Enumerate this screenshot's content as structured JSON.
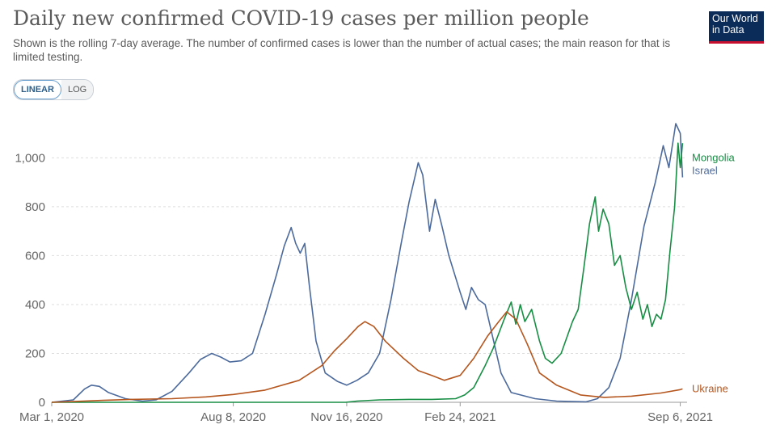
{
  "title": "Daily new confirmed COVID-19 cases per million people",
  "subtitle": "Shown is the rolling 7-day average. The number of confirmed cases is lower than the number of actual cases; the main reason for that is limited testing.",
  "logo": {
    "line1": "Our World",
    "line2": "in Data"
  },
  "scale_toggle": {
    "linear": "LINEAR",
    "log": "LOG",
    "active": "LINEAR"
  },
  "colors": {
    "israel": "#4c6a9c",
    "mongolia": "#178e44",
    "ukraine": "#b5561e",
    "grid": "#dddddd"
  },
  "chart_data": {
    "type": "line",
    "xlabel": "",
    "ylabel": "",
    "x_range": [
      "2020-03-01",
      "2021-09-12"
    ],
    "ylim": [
      0,
      1150
    ],
    "y_ticks": [
      0,
      200,
      400,
      600,
      800,
      1000
    ],
    "y_tick_labels": [
      "0",
      "200",
      "400",
      "600",
      "800",
      "1,000"
    ],
    "x_ticks": [
      "2020-03-01",
      "2020-08-08",
      "2020-11-16",
      "2021-02-24",
      "2021-09-06"
    ],
    "x_tick_labels": [
      "Mar 1, 2020",
      "Aug 8, 2020",
      "Nov 16, 2020",
      "Feb 24, 2021",
      "Sep 6, 2021"
    ],
    "grid": "horizontal dashed",
    "legend": "labels at line ends",
    "series": [
      {
        "name": "Israel",
        "color": "#4c6a9c",
        "points": [
          [
            "2020-03-01",
            0
          ],
          [
            "2020-03-20",
            10
          ],
          [
            "2020-03-30",
            55
          ],
          [
            "2020-04-05",
            70
          ],
          [
            "2020-04-12",
            65
          ],
          [
            "2020-04-20",
            40
          ],
          [
            "2020-05-05",
            15
          ],
          [
            "2020-05-20",
            5
          ],
          [
            "2020-06-01",
            10
          ],
          [
            "2020-06-15",
            45
          ],
          [
            "2020-06-30",
            120
          ],
          [
            "2020-07-10",
            175
          ],
          [
            "2020-07-20",
            200
          ],
          [
            "2020-07-28",
            185
          ],
          [
            "2020-08-05",
            165
          ],
          [
            "2020-08-15",
            170
          ],
          [
            "2020-08-25",
            200
          ],
          [
            "2020-09-05",
            360
          ],
          [
            "2020-09-15",
            520
          ],
          [
            "2020-09-22",
            640
          ],
          [
            "2020-09-28",
            715
          ],
          [
            "2020-10-02",
            650
          ],
          [
            "2020-10-06",
            610
          ],
          [
            "2020-10-10",
            650
          ],
          [
            "2020-10-14",
            480
          ],
          [
            "2020-10-20",
            250
          ],
          [
            "2020-10-28",
            120
          ],
          [
            "2020-11-08",
            85
          ],
          [
            "2020-11-16",
            70
          ],
          [
            "2020-11-25",
            90
          ],
          [
            "2020-12-05",
            120
          ],
          [
            "2020-12-15",
            200
          ],
          [
            "2020-12-25",
            420
          ],
          [
            "2021-01-03",
            650
          ],
          [
            "2021-01-10",
            820
          ],
          [
            "2021-01-18",
            980
          ],
          [
            "2021-01-22",
            930
          ],
          [
            "2021-01-28",
            700
          ],
          [
            "2021-02-02",
            830
          ],
          [
            "2021-02-08",
            720
          ],
          [
            "2021-02-14",
            600
          ],
          [
            "2021-02-24",
            450
          ],
          [
            "2021-03-01",
            380
          ],
          [
            "2021-03-06",
            470
          ],
          [
            "2021-03-12",
            420
          ],
          [
            "2021-03-18",
            400
          ],
          [
            "2021-03-25",
            260
          ],
          [
            "2021-04-01",
            120
          ],
          [
            "2021-04-10",
            40
          ],
          [
            "2021-05-01",
            15
          ],
          [
            "2021-05-20",
            5
          ],
          [
            "2021-06-15",
            2
          ],
          [
            "2021-06-25",
            15
          ],
          [
            "2021-07-05",
            60
          ],
          [
            "2021-07-15",
            180
          ],
          [
            "2021-07-25",
            420
          ],
          [
            "2021-08-05",
            720
          ],
          [
            "2021-08-15",
            900
          ],
          [
            "2021-08-22",
            1050
          ],
          [
            "2021-08-27",
            960
          ],
          [
            "2021-09-02",
            1140
          ],
          [
            "2021-09-06",
            1100
          ],
          [
            "2021-09-08",
            920
          ]
        ]
      },
      {
        "name": "Mongolia",
        "color": "#178e44",
        "points": [
          [
            "2020-03-01",
            0
          ],
          [
            "2020-11-15",
            0
          ],
          [
            "2020-11-25",
            5
          ],
          [
            "2020-12-15",
            10
          ],
          [
            "2021-01-10",
            12
          ],
          [
            "2021-01-30",
            12
          ],
          [
            "2021-02-20",
            15
          ],
          [
            "2021-02-28",
            30
          ],
          [
            "2021-03-08",
            60
          ],
          [
            "2021-03-18",
            150
          ],
          [
            "2021-03-25",
            220
          ],
          [
            "2021-04-03",
            330
          ],
          [
            "2021-04-10",
            410
          ],
          [
            "2021-04-14",
            320
          ],
          [
            "2021-04-18",
            400
          ],
          [
            "2021-04-22",
            330
          ],
          [
            "2021-04-28",
            380
          ],
          [
            "2021-05-05",
            250
          ],
          [
            "2021-05-10",
            180
          ],
          [
            "2021-05-16",
            160
          ],
          [
            "2021-05-24",
            200
          ],
          [
            "2021-06-03",
            330
          ],
          [
            "2021-06-08",
            380
          ],
          [
            "2021-06-13",
            550
          ],
          [
            "2021-06-18",
            730
          ],
          [
            "2021-06-23",
            840
          ],
          [
            "2021-06-26",
            700
          ],
          [
            "2021-06-30",
            790
          ],
          [
            "2021-07-05",
            730
          ],
          [
            "2021-07-10",
            560
          ],
          [
            "2021-07-15",
            600
          ],
          [
            "2021-07-20",
            470
          ],
          [
            "2021-07-25",
            380
          ],
          [
            "2021-07-30",
            450
          ],
          [
            "2021-08-04",
            340
          ],
          [
            "2021-08-08",
            400
          ],
          [
            "2021-08-12",
            310
          ],
          [
            "2021-08-16",
            360
          ],
          [
            "2021-08-20",
            340
          ],
          [
            "2021-08-24",
            420
          ],
          [
            "2021-08-28",
            620
          ],
          [
            "2021-09-01",
            800
          ],
          [
            "2021-09-04",
            1060
          ],
          [
            "2021-09-06",
            960
          ],
          [
            "2021-09-08",
            1060
          ]
        ]
      },
      {
        "name": "Ukraine",
        "color": "#b5561e",
        "points": [
          [
            "2020-03-01",
            0
          ],
          [
            "2020-03-20",
            3
          ],
          [
            "2020-04-15",
            8
          ],
          [
            "2020-05-10",
            12
          ],
          [
            "2020-06-15",
            15
          ],
          [
            "2020-07-15",
            22
          ],
          [
            "2020-08-08",
            32
          ],
          [
            "2020-09-05",
            50
          ],
          [
            "2020-10-05",
            90
          ],
          [
            "2020-10-25",
            150
          ],
          [
            "2020-11-05",
            210
          ],
          [
            "2020-11-16",
            260
          ],
          [
            "2020-11-26",
            310
          ],
          [
            "2020-12-02",
            330
          ],
          [
            "2020-12-10",
            310
          ],
          [
            "2020-12-20",
            250
          ],
          [
            "2021-01-05",
            180
          ],
          [
            "2021-01-18",
            130
          ],
          [
            "2021-01-30",
            110
          ],
          [
            "2021-02-10",
            90
          ],
          [
            "2021-02-24",
            110
          ],
          [
            "2021-03-08",
            180
          ],
          [
            "2021-03-20",
            270
          ],
          [
            "2021-03-30",
            330
          ],
          [
            "2021-04-06",
            370
          ],
          [
            "2021-04-14",
            340
          ],
          [
            "2021-04-24",
            240
          ],
          [
            "2021-05-05",
            120
          ],
          [
            "2021-05-20",
            70
          ],
          [
            "2021-06-10",
            30
          ],
          [
            "2021-07-01",
            20
          ],
          [
            "2021-07-25",
            25
          ],
          [
            "2021-08-20",
            38
          ],
          [
            "2021-09-06",
            52
          ],
          [
            "2021-09-08",
            55
          ]
        ]
      }
    ]
  }
}
